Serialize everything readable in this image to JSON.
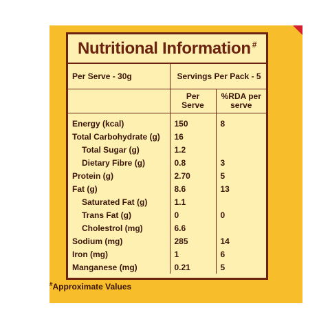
{
  "title": "Nutritional Information",
  "title_mark": "#",
  "per_serve": "Per Serve - 30g",
  "servings": "Servings Per Pack - 5",
  "headers": {
    "per_serve": "Per\nServe",
    "rda": "%RDA per\nserve"
  },
  "rows": [
    {
      "name": "Energy (kcal)",
      "per": "150",
      "rda": "8",
      "indent": false
    },
    {
      "name": "Total Carbohydrate (g)",
      "per": "16",
      "rda": "",
      "indent": false
    },
    {
      "name": "Total Sugar (g)",
      "per": "1.2",
      "rda": "",
      "indent": true
    },
    {
      "name": "Dietary Fibre (g)",
      "per": "0.8",
      "rda": "3",
      "indent": true
    },
    {
      "name": "Protein (g)",
      "per": "2.70",
      "rda": "5",
      "indent": false
    },
    {
      "name": "Fat (g)",
      "per": "8.6",
      "rda": "13",
      "indent": false
    },
    {
      "name": "Saturated Fat (g)",
      "per": "1.1",
      "rda": "",
      "indent": true
    },
    {
      "name": "Trans Fat (g)",
      "per": "0",
      "rda": "0",
      "indent": true
    },
    {
      "name": "Cholestrol (mg)",
      "per": "6.6",
      "rda": "",
      "indent": true
    },
    {
      "name": "Sodium (mg)",
      "per": "285",
      "rda": "14",
      "indent": false
    },
    {
      "name": "Iron (mg)",
      "per": "1",
      "rda": "6",
      "indent": false
    },
    {
      "name": "Manganese (mg)",
      "per": "0.21",
      "rda": "5",
      "indent": false
    }
  ],
  "footnote_mark": "#",
  "footnote": "Approximate Values",
  "colors": {
    "panel": "#f7bd2b",
    "label": "#fdf0b0",
    "border": "#6b2310",
    "corner": "#d4202c"
  }
}
